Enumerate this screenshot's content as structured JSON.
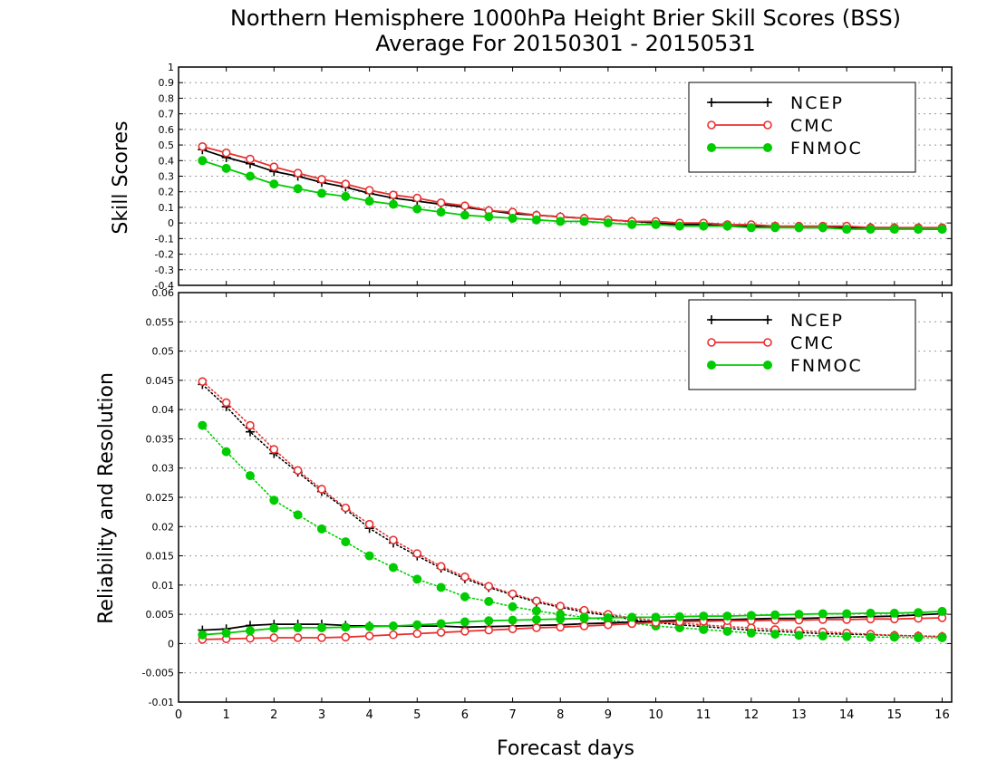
{
  "title": "Northern Hemisphere 1000hPa Height Brier Skill Scores (BSS)",
  "subtitle": "Average For 20150301 - 20150531",
  "xlabel": "Forecast days",
  "colors": {
    "NCEP": "#000000",
    "CMC": "#e83030",
    "FNMOC": "#00cc00"
  },
  "chart_data": [
    {
      "type": "line",
      "ylabel": "Skill Scores",
      "xlim": [
        0,
        16.2
      ],
      "ylim": [
        -0.4,
        1
      ],
      "x_ticks": [
        0,
        1,
        2,
        3,
        4,
        5,
        6,
        7,
        8,
        9,
        10,
        11,
        12,
        13,
        14,
        15,
        16
      ],
      "y_ticks": [
        "1",
        "0.9",
        "0.8",
        "0.7",
        "0.6",
        "0.5",
        "0.4",
        "0.3",
        "0.2",
        "0.1",
        "0",
        "-0.1",
        "-0.2",
        "-0.3",
        "-0.4"
      ],
      "grid": "horizontal-dotted",
      "legend_position": "top-right",
      "x": [
        0.5,
        1,
        1.5,
        2,
        2.5,
        3,
        3.5,
        4,
        4.5,
        5,
        5.5,
        6,
        6.5,
        7,
        7.5,
        8,
        8.5,
        9,
        9.5,
        10,
        10.5,
        11,
        11.5,
        12,
        12.5,
        13,
        13.5,
        14,
        14.5,
        15,
        15.5,
        16
      ],
      "series": [
        {
          "name": "NCEP",
          "marker": "plus",
          "style": "solid",
          "values": [
            0.47,
            0.42,
            0.38,
            0.33,
            0.3,
            0.26,
            0.23,
            0.19,
            0.16,
            0.14,
            0.12,
            0.1,
            0.08,
            0.06,
            0.05,
            0.04,
            0.03,
            0.02,
            0.01,
            0.0,
            -0.01,
            -0.01,
            -0.02,
            -0.02,
            -0.02,
            -0.03,
            -0.03,
            -0.03,
            -0.03,
            -0.03,
            -0.04,
            -0.04
          ]
        },
        {
          "name": "CMC",
          "marker": "open-circle",
          "style": "solid",
          "values": [
            0.49,
            0.45,
            0.41,
            0.36,
            0.32,
            0.28,
            0.25,
            0.21,
            0.18,
            0.16,
            0.13,
            0.11,
            0.08,
            0.07,
            0.05,
            0.04,
            0.03,
            0.02,
            0.01,
            0.01,
            0.0,
            0.0,
            -0.01,
            -0.01,
            -0.02,
            -0.02,
            -0.02,
            -0.02,
            -0.03,
            -0.03,
            -0.03,
            -0.03
          ]
        },
        {
          "name": "FNMOC",
          "marker": "filled-circle",
          "style": "solid",
          "values": [
            0.4,
            0.35,
            0.3,
            0.25,
            0.22,
            0.19,
            0.17,
            0.14,
            0.12,
            0.09,
            0.07,
            0.05,
            0.04,
            0.03,
            0.02,
            0.01,
            0.01,
            0.0,
            -0.01,
            -0.01,
            -0.02,
            -0.02,
            -0.02,
            -0.03,
            -0.03,
            -0.03,
            -0.03,
            -0.04,
            -0.04,
            -0.04,
            -0.04,
            -0.04
          ]
        }
      ]
    },
    {
      "type": "line",
      "ylabel": "Reliability and Resolution",
      "xlim": [
        0,
        16.2
      ],
      "ylim": [
        -0.01,
        0.06
      ],
      "x_ticks": [
        0,
        1,
        2,
        3,
        4,
        5,
        6,
        7,
        8,
        9,
        10,
        11,
        12,
        13,
        14,
        15,
        16
      ],
      "y_ticks": [
        "0.06",
        "0.055",
        "0.05",
        "0.045",
        "0.04",
        "0.035",
        "0.03",
        "0.025",
        "0.02",
        "0.015",
        "0.01",
        "0.005",
        "0",
        "-0.005",
        "-0.01"
      ],
      "grid": "horizontal-dotted",
      "legend_position": "top-right",
      "x": [
        0.5,
        1,
        1.5,
        2,
        2.5,
        3,
        3.5,
        4,
        4.5,
        5,
        5.5,
        6,
        6.5,
        7,
        7.5,
        8,
        8.5,
        9,
        9.5,
        10,
        10.5,
        11,
        11.5,
        12,
        12.5,
        13,
        13.5,
        14,
        14.5,
        15,
        15.5,
        16
      ],
      "series": [
        {
          "name": "NCEP",
          "marker": "plus",
          "style": "dotted",
          "values": [
            0.0443,
            0.0405,
            0.0362,
            0.0325,
            0.0293,
            0.026,
            0.023,
            0.0197,
            0.0172,
            0.015,
            0.0129,
            0.0111,
            0.0096,
            0.0083,
            0.0071,
            0.0062,
            0.0054,
            0.0048,
            0.0041,
            0.0036,
            0.0032,
            0.0029,
            0.0026,
            0.0023,
            0.0021,
            0.0019,
            0.0017,
            0.0016,
            0.0015,
            0.0014,
            0.0013,
            0.0012
          ]
        },
        {
          "name": "CMC",
          "marker": "open-circle",
          "style": "dotted",
          "values": [
            0.0448,
            0.0412,
            0.0373,
            0.0332,
            0.0296,
            0.0264,
            0.0232,
            0.0204,
            0.0177,
            0.0154,
            0.0132,
            0.0114,
            0.0098,
            0.0085,
            0.0073,
            0.0064,
            0.0057,
            0.005,
            0.0044,
            0.0039,
            0.0035,
            0.0032,
            0.0029,
            0.0027,
            0.0024,
            0.0022,
            0.002,
            0.0018,
            0.0016,
            0.0014,
            0.0013,
            0.0012
          ]
        },
        {
          "name": "FNMOC",
          "marker": "filled-circle",
          "style": "dotted",
          "values": [
            0.0373,
            0.0328,
            0.0287,
            0.0245,
            0.022,
            0.0196,
            0.0174,
            0.015,
            0.013,
            0.011,
            0.0096,
            0.008,
            0.0072,
            0.0063,
            0.0056,
            0.005,
            0.0045,
            0.004,
            0.0035,
            0.003,
            0.0027,
            0.0024,
            0.0021,
            0.0018,
            0.0016,
            0.0014,
            0.0013,
            0.0012,
            0.0011,
            0.0011,
            0.001,
            0.001
          ]
        },
        {
          "name": "NCEP",
          "marker": "plus",
          "style": "solid",
          "values": [
            0.0023,
            0.0025,
            0.0031,
            0.0033,
            0.0033,
            0.0033,
            0.0031,
            0.003,
            0.003,
            0.003,
            0.003,
            0.0028,
            0.0029,
            0.003,
            0.0031,
            0.0032,
            0.0034,
            0.0035,
            0.0037,
            0.0038,
            0.004,
            0.0041,
            0.0041,
            0.0042,
            0.0043,
            0.0043,
            0.0044,
            0.0045,
            0.0046,
            0.0047,
            0.0049,
            0.0051
          ]
        },
        {
          "name": "CMC",
          "marker": "open-circle",
          "style": "solid",
          "values": [
            0.0007,
            0.0008,
            0.0009,
            0.001,
            0.001,
            0.001,
            0.0011,
            0.0013,
            0.0015,
            0.0017,
            0.0019,
            0.0021,
            0.0023,
            0.0025,
            0.0027,
            0.0028,
            0.003,
            0.0032,
            0.0034,
            0.0036,
            0.0037,
            0.0038,
            0.0039,
            0.0039,
            0.004,
            0.004,
            0.0041,
            0.0041,
            0.0042,
            0.0042,
            0.0043,
            0.0044
          ]
        },
        {
          "name": "FNMOC",
          "marker": "filled-circle",
          "style": "solid",
          "values": [
            0.0015,
            0.0018,
            0.0022,
            0.0026,
            0.0027,
            0.0027,
            0.0028,
            0.0029,
            0.003,
            0.0032,
            0.0034,
            0.0037,
            0.0039,
            0.004,
            0.0041,
            0.0042,
            0.0043,
            0.0044,
            0.0045,
            0.0045,
            0.0046,
            0.0047,
            0.0047,
            0.0048,
            0.0049,
            0.005,
            0.0051,
            0.0051,
            0.0052,
            0.0052,
            0.0053,
            0.0055
          ]
        }
      ]
    }
  ]
}
